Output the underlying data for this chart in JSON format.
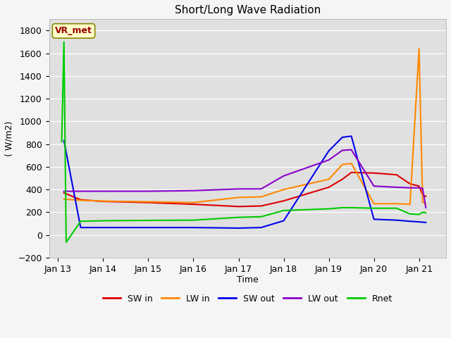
{
  "title": "Short/Long Wave Radiation",
  "xlabel": "Time",
  "ylabel": "( W/m2)",
  "ylim": [
    -200,
    1900
  ],
  "yticks": [
    -200,
    0,
    200,
    400,
    600,
    800,
    1000,
    1200,
    1400,
    1600,
    1800
  ],
  "plot_bg": "#e0e0e0",
  "fig_bg": "#f5f5f5",
  "label_text": "VR_met",
  "series": {
    "SW_in": {
      "color": "#dd0000",
      "x": [
        0.13,
        0.5,
        1.0,
        2.0,
        3.0,
        4.0,
        4.5,
        5.0,
        6.0,
        6.3,
        6.5,
        7.0,
        7.5,
        7.8,
        8.0,
        8.08,
        8.15
      ],
      "y": [
        370,
        310,
        295,
        285,
        270,
        250,
        255,
        300,
        420,
        490,
        550,
        545,
        530,
        450,
        430,
        350,
        340
      ]
    },
    "LW_in": {
      "color": "#ff8800",
      "x": [
        0.13,
        0.5,
        1.0,
        2.0,
        3.0,
        4.0,
        4.5,
        5.0,
        6.0,
        6.3,
        6.5,
        7.0,
        7.5,
        7.8,
        8.0,
        8.08,
        8.15
      ],
      "y": [
        315,
        305,
        298,
        292,
        285,
        330,
        335,
        400,
        490,
        620,
        630,
        275,
        275,
        270,
        1640,
        290,
        270
      ]
    },
    "SW_out": {
      "color": "#0000ee",
      "x": [
        0.13,
        0.5,
        1.0,
        2.0,
        3.0,
        4.0,
        4.5,
        5.0,
        6.0,
        6.3,
        6.5,
        7.0,
        7.5,
        7.8,
        8.0,
        8.08,
        8.15
      ],
      "y": [
        830,
        65,
        65,
        65,
        65,
        60,
        65,
        125,
        740,
        860,
        870,
        138,
        130,
        120,
        115,
        112,
        110
      ]
    },
    "LW_out": {
      "color": "#8800cc",
      "x": [
        0.13,
        0.5,
        1.0,
        2.0,
        3.0,
        4.0,
        4.5,
        5.0,
        6.0,
        6.3,
        6.5,
        7.0,
        7.5,
        7.8,
        8.0,
        8.08,
        8.15
      ],
      "y": [
        385,
        385,
        385,
        385,
        390,
        405,
        405,
        520,
        660,
        745,
        750,
        430,
        420,
        415,
        415,
        410,
        240
      ]
    },
    "Rnet": {
      "color": "#00cc00",
      "x": [
        0.08,
        0.13,
        0.18,
        0.5,
        1.0,
        2.0,
        3.0,
        4.0,
        4.5,
        5.0,
        6.0,
        6.3,
        6.5,
        7.0,
        7.5,
        7.8,
        8.0,
        8.08,
        8.15
      ],
      "y": [
        820,
        1700,
        -65,
        120,
        125,
        128,
        130,
        155,
        160,
        215,
        230,
        240,
        240,
        235,
        235,
        185,
        180,
        200,
        195
      ]
    }
  },
  "xtick_positions": [
    0,
    1,
    2,
    3,
    4,
    5,
    6,
    7,
    8
  ],
  "xtick_labels": [
    "Jan 13",
    "Jan 14",
    "Jan 15",
    "Jan 16",
    "Jan 17",
    "Jan 18",
    "Jan 19",
    "Jan 20",
    "Jan 21"
  ],
  "legend_labels": [
    "SW in",
    "LW in",
    "SW out",
    "LW out",
    "Rnet"
  ],
  "legend_colors": [
    "#dd0000",
    "#ff8800",
    "#0000ee",
    "#8800cc",
    "#00cc00"
  ]
}
